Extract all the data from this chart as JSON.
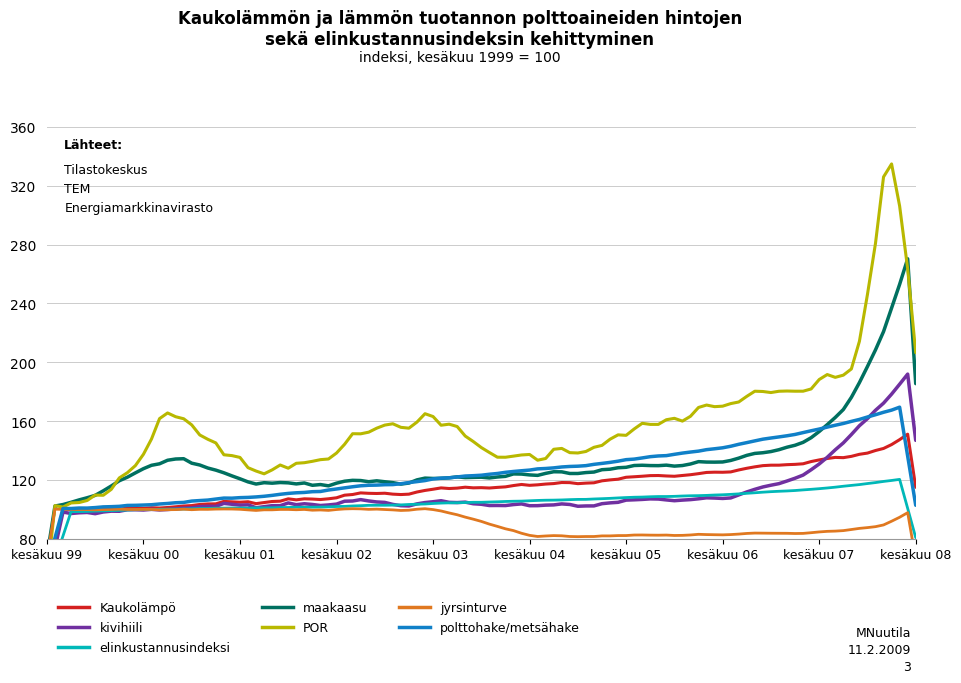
{
  "title_line1": "Kaukolämmön ja lämmön tuotannon polttoaineiden hintojen",
  "title_line2": "sekä elinkustannusindeksin kehittyminen",
  "title_line3": "indeksi, kesäkuu 1999 = 100",
  "source_label": "Lähteet:",
  "source_body": "Tilastokeskus\nTEM\nEnergiamarkkinavirasto",
  "xlabel_ticks": [
    "kesäkuu 99",
    "kesäkuu 00",
    "kesäkuu 01",
    "kesäkuu 02",
    "kesäkuu 03",
    "kesäkuu 04",
    "kesäkuu 05",
    "kesäkuu 06",
    "kesäkuu 07",
    "kesäkuu 08"
  ],
  "ylim": [
    80,
    370
  ],
  "yticks": [
    80,
    120,
    160,
    200,
    240,
    280,
    320,
    360
  ],
  "legend_entries": [
    "Kaukolämpö",
    "kivihiili",
    "elinkustannusindeksi",
    "maakaasu",
    "POR",
    "jyrsinturve",
    "polttohake/metsähake"
  ],
  "line_colors": {
    "Kaukolämpö": "#d42020",
    "kivihiili": "#7030a0",
    "elinkustannusindeksi": "#00b8b8",
    "maakaasu": "#007060",
    "POR": "#b8b800",
    "jyrsinturve": "#e07820",
    "polttohake/metsähake": "#1080c8"
  },
  "line_widths": {
    "Kaukolämpö": 2.2,
    "kivihiili": 2.5,
    "elinkustannusindeksi": 2.0,
    "maakaasu": 2.5,
    "POR": 2.2,
    "jyrsinturve": 2.0,
    "polttohake/metsähake": 2.5
  },
  "background_color": "#ffffff",
  "grid_color": "#cccccc",
  "note_text": "MNuutila\n11.2.2009\n3",
  "n_points": 109,
  "tick_interval": 12
}
